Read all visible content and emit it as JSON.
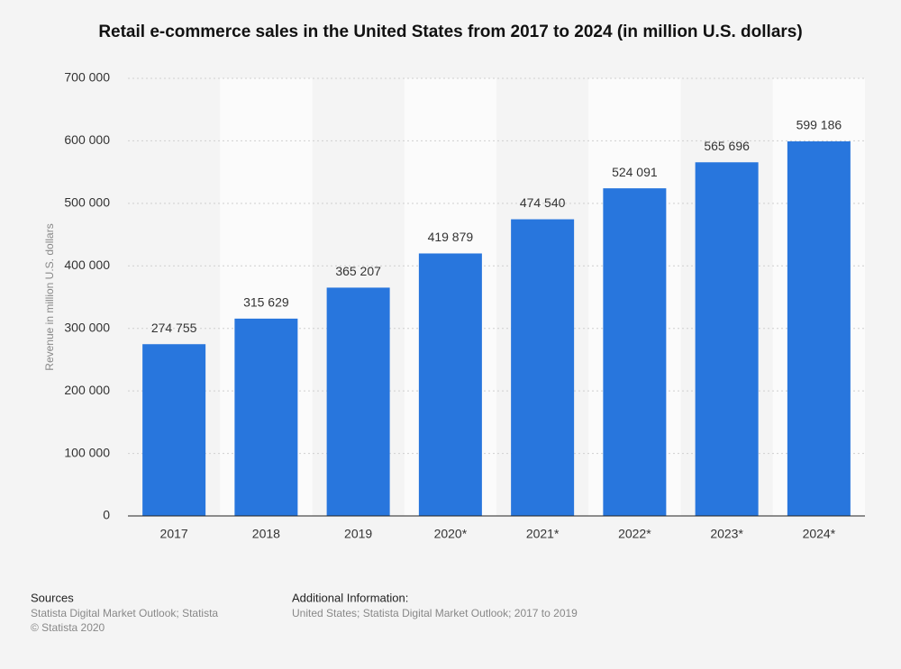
{
  "chart_data": {
    "type": "bar",
    "title": "Retail e-commerce sales in the United States from 2017 to 2024 (in million U.S. dollars)",
    "y_label": "Revenue in million U.S. dollars",
    "categories": [
      "2017",
      "2018",
      "2019",
      "2020*",
      "2021*",
      "2022*",
      "2023*",
      "2024*"
    ],
    "values": [
      274755,
      315629,
      365207,
      419879,
      474540,
      524091,
      565696,
      599186
    ],
    "value_labels": [
      "274 755",
      "315 629",
      "365 207",
      "419 879",
      "474 540",
      "524 091",
      "565 696",
      "599 186"
    ],
    "color": "#2876dd",
    "ylim": [
      0,
      700000
    ],
    "yticks": [
      0,
      {
        "value": 100000,
        "label": "100 000"
      },
      {
        "value": 200000,
        "label": "200 000"
      },
      {
        "value": 300000,
        "label": "300 000"
      },
      {
        "value": 400000,
        "label": "400 000"
      },
      {
        "value": 500000,
        "label": "500 000"
      },
      {
        "value": 600000,
        "label": "600 000"
      },
      {
        "value": 700000,
        "label": "700 000"
      }
    ],
    "grid": true
  },
  "footer": {
    "sources_title": "Sources",
    "sources": "Statista Digital Market Outlook; Statista",
    "copyright": "© Statista 2020",
    "info_title": "Additional Information:",
    "info": "United States; Statista Digital Market Outlook; 2017 to 2019"
  }
}
